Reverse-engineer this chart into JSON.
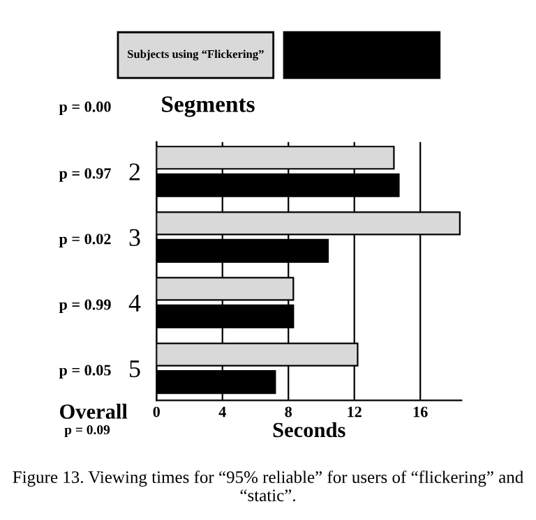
{
  "chart_data": {
    "type": "bar",
    "orientation": "horizontal",
    "ylabel": "Segments",
    "xlabel": "Seconds",
    "categories": [
      "2",
      "3",
      "4",
      "5"
    ],
    "series": [
      {
        "name": "Subjects using “Flickering”",
        "color": "#d9d9d9",
        "values": [
          14.4,
          18.4,
          8.3,
          12.2
        ]
      },
      {
        "color": "#000000",
        "values": [
          14.7,
          10.4,
          8.3,
          7.2
        ]
      }
    ],
    "xlim": [
      0,
      18.5
    ],
    "xticks": [
      0,
      4,
      8,
      12,
      16
    ],
    "grid": "x",
    "legend": "top",
    "annotations": [
      "p = 0.00",
      "p = 0.97",
      "p = 0.02",
      "p = 0.99",
      "p = 0.05",
      "Overall",
      "p = 0.09",
      "Figure 13. Viewing times for “95% reliable” for users of “flickering” and “static”."
    ]
  }
}
